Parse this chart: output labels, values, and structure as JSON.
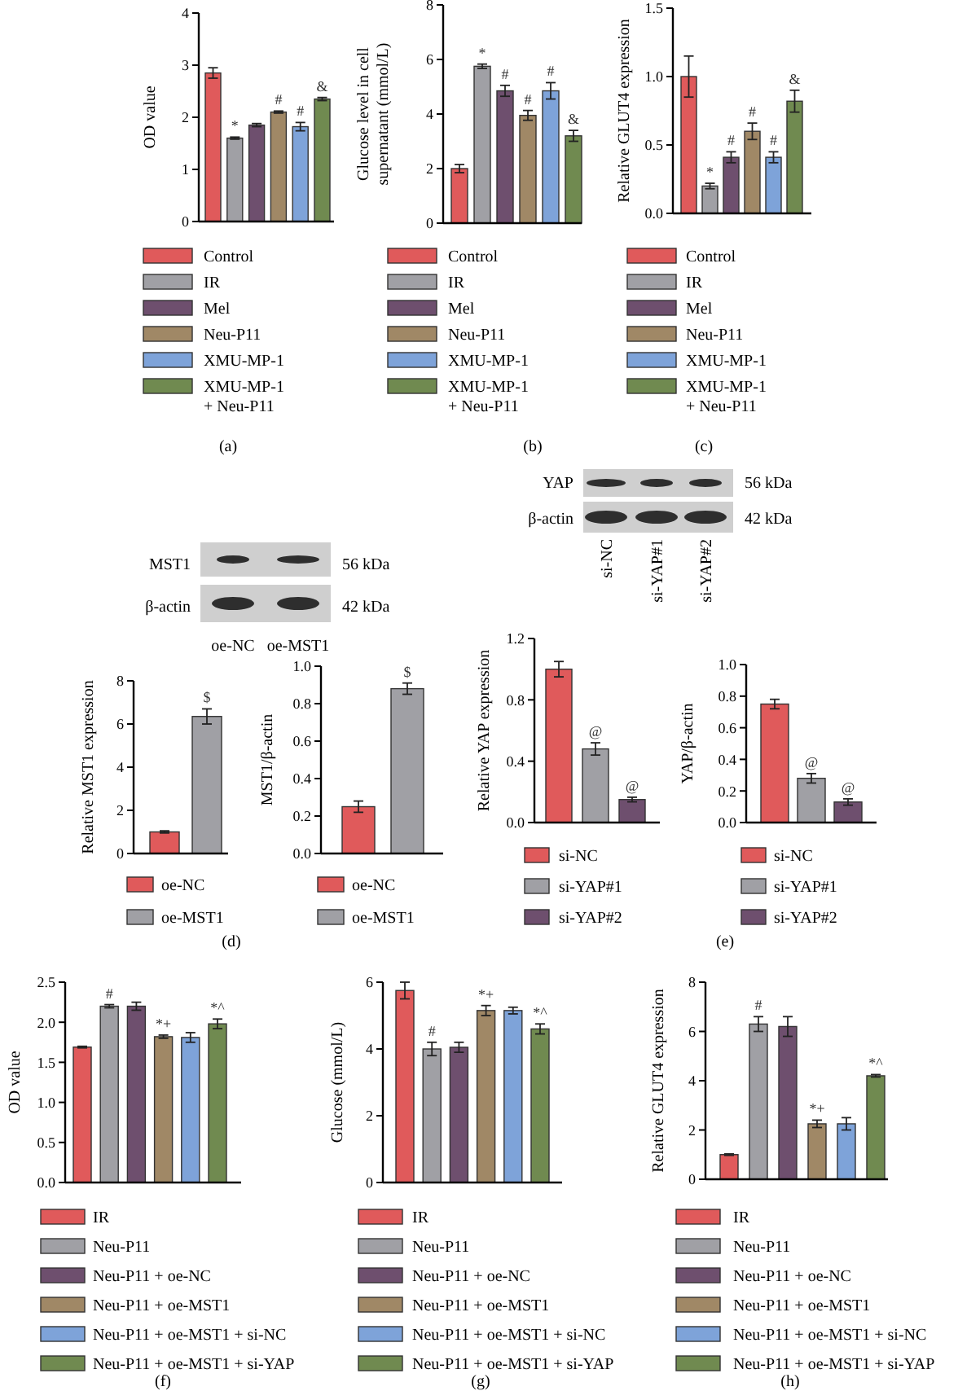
{
  "chart_data": [
    {
      "type": "bar",
      "ylabel": "OD value",
      "categories": [
        null
      ],
      "series": [
        {
          "name": "Control",
          "color": "#e05a5b",
          "values": [
            2.85
          ],
          "errors": [
            0.1
          ]
        },
        {
          "name": "IR",
          "color": "#a0a0a5",
          "values": [
            1.6
          ],
          "errors": [
            0.02
          ],
          "value_labels": [
            "*"
          ]
        },
        {
          "name": "Mel",
          "color": "#6e4f6e",
          "values": [
            1.85
          ],
          "errors": [
            0.03
          ]
        },
        {
          "name": "Neu-P11",
          "color": "#a08866",
          "values": [
            2.1
          ],
          "errors": [
            0.02
          ],
          "value_labels": [
            "#"
          ]
        },
        {
          "name": "XMU-MP-1",
          "color": "#7ea3d9",
          "values": [
            1.82
          ],
          "errors": [
            0.08
          ],
          "value_labels": [
            "#"
          ]
        },
        {
          "name": "XMU-MP-1\n+ Neu-P11",
          "color": "#708a50",
          "values": [
            2.35
          ],
          "errors": [
            0.03
          ],
          "value_labels": [
            "&"
          ]
        }
      ],
      "ylim": [
        0,
        4
      ],
      "yticks": [
        0,
        1,
        2,
        3,
        4
      ],
      "tick_labels": "y",
      "legend": "bottom",
      "annotations": [
        "(a)"
      ]
    },
    {
      "type": "bar",
      "ylabel": "Glucose level in cell\nsupernatant (mmol/L)",
      "categories": [
        null
      ],
      "series": [
        {
          "name": "Control",
          "color": "#e05a5b",
          "values": [
            2.0
          ],
          "errors": [
            0.15
          ]
        },
        {
          "name": "IR",
          "color": "#a0a0a5",
          "values": [
            5.75
          ],
          "errors": [
            0.08
          ],
          "value_labels": [
            "*"
          ]
        },
        {
          "name": "Mel",
          "color": "#6e4f6e",
          "values": [
            4.85
          ],
          "errors": [
            0.2
          ],
          "value_labels": [
            "#"
          ]
        },
        {
          "name": "Neu-P11",
          "color": "#a08866",
          "values": [
            3.95
          ],
          "errors": [
            0.18
          ],
          "value_labels": [
            "#"
          ]
        },
        {
          "name": "XMU-MP-1",
          "color": "#7ea3d9",
          "values": [
            4.85
          ],
          "errors": [
            0.3
          ],
          "value_labels": [
            "#"
          ]
        },
        {
          "name": "XMU-MP-1\n+ Neu-P11",
          "color": "#708a50",
          "values": [
            3.2
          ],
          "errors": [
            0.2
          ],
          "value_labels": [
            "&"
          ]
        }
      ],
      "ylim": [
        0,
        8
      ],
      "yticks": [
        0,
        2,
        4,
        6,
        8
      ],
      "tick_labels": "y",
      "legend": "bottom",
      "annotations": [
        "(b)"
      ]
    },
    {
      "type": "bar",
      "ylabel": "Relative GLUT4 expression",
      "categories": [
        null
      ],
      "series": [
        {
          "name": "Control",
          "color": "#e05a5b",
          "values": [
            1.0
          ],
          "errors": [
            0.15
          ]
        },
        {
          "name": "IR",
          "color": "#a0a0a5",
          "values": [
            0.2
          ],
          "errors": [
            0.02
          ],
          "value_labels": [
            "*"
          ]
        },
        {
          "name": "Mel",
          "color": "#6e4f6e",
          "values": [
            0.41
          ],
          "errors": [
            0.04
          ],
          "value_labels": [
            "#"
          ]
        },
        {
          "name": "Neu-P11",
          "color": "#a08866",
          "values": [
            0.6
          ],
          "errors": [
            0.06
          ],
          "value_labels": [
            "#"
          ]
        },
        {
          "name": "XMU-MP-1",
          "color": "#7ea3d9",
          "values": [
            0.41
          ],
          "errors": [
            0.04
          ],
          "value_labels": [
            "#"
          ]
        },
        {
          "name": "XMU-MP-1\n+ Neu-P11",
          "color": "#708a50",
          "values": [
            0.82
          ],
          "errors": [
            0.08
          ],
          "value_labels": [
            "&"
          ]
        }
      ],
      "ylim": [
        0,
        1.5
      ],
      "yticks": [
        {
          "value": 0,
          "label": "0.0"
        },
        {
          "value": 0.5,
          "label": "0.5"
        },
        {
          "value": 1,
          "label": "1.0"
        },
        {
          "value": 1.5,
          "label": "1.5"
        }
      ],
      "tick_labels": "y",
      "legend": "bottom",
      "annotations": [
        "(c)"
      ]
    },
    {
      "type": "other",
      "annotations": [
        "MST1",
        "56 kDa",
        "β-actin",
        "42 kDa",
        "oe-NC",
        "oe-MST1"
      ]
    },
    {
      "type": "bar",
      "ylabel": "Relative MST1 expression",
      "categories": [
        null
      ],
      "series": [
        {
          "name": "oe-NC",
          "color": "#e05a5b",
          "values": [
            1.0
          ],
          "errors": [
            0.05
          ]
        },
        {
          "name": "oe-MST1",
          "color": "#a0a0a5",
          "values": [
            6.35
          ],
          "errors": [
            0.35
          ],
          "value_labels": [
            "$"
          ]
        }
      ],
      "ylim": [
        0,
        8
      ],
      "yticks": [
        0,
        2,
        4,
        6,
        8
      ],
      "tick_labels": "y",
      "legend": "bottom"
    },
    {
      "type": "bar",
      "ylabel": "MST1/β-actin",
      "categories": [
        null
      ],
      "series": [
        {
          "name": "oe-NC",
          "color": "#e05a5b",
          "values": [
            0.25
          ],
          "errors": [
            0.03
          ]
        },
        {
          "name": "oe-MST1",
          "color": "#a0a0a5",
          "values": [
            0.88
          ],
          "errors": [
            0.03
          ],
          "value_labels": [
            "$"
          ]
        }
      ],
      "ylim": [
        0,
        1
      ],
      "yticks": [
        {
          "value": 0,
          "label": "0.0"
        },
        {
          "value": 0.2,
          "label": "0.2"
        },
        {
          "value": 0.4,
          "label": "0.4"
        },
        {
          "value": 0.6,
          "label": "0.6"
        },
        {
          "value": 0.8,
          "label": "0.8"
        },
        {
          "value": 1,
          "label": "1.0"
        }
      ],
      "tick_labels": "y",
      "legend": "bottom",
      "annotations": [
        "(d)"
      ]
    },
    {
      "type": "other",
      "annotations": [
        "YAP",
        "56 kDa",
        "β-actin",
        "42 kDa",
        "si-NC",
        "si-YAP#1",
        "si-YAP#2"
      ]
    },
    {
      "type": "bar",
      "ylabel": "Relative YAP expression",
      "categories": [
        null
      ],
      "series": [
        {
          "name": "si-NC",
          "color": "#e05a5b",
          "values": [
            1.0
          ],
          "errors": [
            0.05
          ]
        },
        {
          "name": "si-YAP#1",
          "color": "#a0a0a5",
          "values": [
            0.48
          ],
          "errors": [
            0.04
          ],
          "value_labels": [
            "@"
          ]
        },
        {
          "name": "si-YAP#2",
          "color": "#6e4f6e",
          "values": [
            0.15
          ],
          "errors": [
            0.015
          ],
          "value_labels": [
            "@"
          ]
        }
      ],
      "ylim": [
        0,
        1.2
      ],
      "yticks": [
        {
          "value": 0,
          "label": "0.0"
        },
        {
          "value": 0.4,
          "label": "0.4"
        },
        {
          "value": 0.8,
          "label": "0.8"
        },
        {
          "value": 1.2,
          "label": "1.2"
        }
      ],
      "tick_labels": "y",
      "legend": "bottom"
    },
    {
      "type": "bar",
      "ylabel": "YAP/β-actin",
      "categories": [
        null
      ],
      "series": [
        {
          "name": "si-NC",
          "color": "#e05a5b",
          "values": [
            0.75
          ],
          "errors": [
            0.03
          ]
        },
        {
          "name": "si-YAP#1",
          "color": "#a0a0a5",
          "values": [
            0.28
          ],
          "errors": [
            0.03
          ],
          "value_labels": [
            "@"
          ]
        },
        {
          "name": "si-YAP#2",
          "color": "#6e4f6e",
          "values": [
            0.13
          ],
          "errors": [
            0.02
          ],
          "value_labels": [
            "@"
          ]
        }
      ],
      "ylim": [
        0,
        1
      ],
      "yticks": [
        {
          "value": 0,
          "label": "0.0"
        },
        {
          "value": 0.2,
          "label": "0.2"
        },
        {
          "value": 0.4,
          "label": "0.4"
        },
        {
          "value": 0.6,
          "label": "0.6"
        },
        {
          "value": 0.8,
          "label": "0.8"
        },
        {
          "value": 1,
          "label": "1.0"
        }
      ],
      "tick_labels": "y",
      "legend": "bottom",
      "annotations": [
        "(e)"
      ]
    },
    {
      "type": "bar",
      "ylabel": "OD value",
      "categories": [
        null
      ],
      "series": [
        {
          "name": "IR",
          "color": "#e05a5b",
          "values": [
            1.69
          ],
          "errors": [
            0.01
          ]
        },
        {
          "name": "Neu-P11",
          "color": "#a0a0a5",
          "values": [
            2.2
          ],
          "errors": [
            0.02
          ],
          "value_labels": [
            "#"
          ]
        },
        {
          "name": "Neu-P11 + oe-NC",
          "color": "#6e4f6e",
          "values": [
            2.2
          ],
          "errors": [
            0.05
          ]
        },
        {
          "name": "Neu-P11 + oe-MST1",
          "color": "#a08866",
          "values": [
            1.82
          ],
          "errors": [
            0.02
          ],
          "value_labels": [
            "*+"
          ]
        },
        {
          "name": "Neu-P11 + oe-MST1 + si-NC",
          "color": "#7ea3d9",
          "values": [
            1.81
          ],
          "errors": [
            0.06
          ]
        },
        {
          "name": "Neu-P11 + oe-MST1 + si-YAP",
          "color": "#708a50",
          "values": [
            1.98
          ],
          "errors": [
            0.06
          ],
          "value_labels": [
            "*^"
          ]
        }
      ],
      "ylim": [
        0,
        2.5
      ],
      "yticks": [
        {
          "value": 0,
          "label": "0.0"
        },
        {
          "value": 0.5,
          "label": "0.5"
        },
        {
          "value": 1,
          "label": "1.0"
        },
        {
          "value": 1.5,
          "label": "1.5"
        },
        {
          "value": 2,
          "label": "2.0"
        },
        {
          "value": 2.5,
          "label": "2.5"
        }
      ],
      "tick_labels": "y",
      "legend": "bottom",
      "annotations": [
        "(f)"
      ]
    },
    {
      "type": "bar",
      "ylabel": "Glucose (mmol/L)",
      "categories": [
        null
      ],
      "series": [
        {
          "name": "IR",
          "color": "#e05a5b",
          "values": [
            5.75
          ],
          "errors": [
            0.25
          ]
        },
        {
          "name": "Neu-P11",
          "color": "#a0a0a5",
          "values": [
            4.0
          ],
          "errors": [
            0.2
          ],
          "value_labels": [
            "#"
          ]
        },
        {
          "name": "Neu-P11 + oe-NC",
          "color": "#6e4f6e",
          "values": [
            4.05
          ],
          "errors": [
            0.15
          ]
        },
        {
          "name": "Neu-P11 + oe-MST1",
          "color": "#a08866",
          "values": [
            5.15
          ],
          "errors": [
            0.15
          ],
          "value_labels": [
            "*+"
          ]
        },
        {
          "name": "Neu-P11 + oe-MST1 + si-NC",
          "color": "#7ea3d9",
          "values": [
            5.15
          ],
          "errors": [
            0.1
          ]
        },
        {
          "name": "Neu-P11 + oe-MST1 + si-YAP",
          "color": "#708a50",
          "values": [
            4.6
          ],
          "errors": [
            0.15
          ],
          "value_labels": [
            "*^"
          ]
        }
      ],
      "ylim": [
        0,
        6
      ],
      "yticks": [
        0,
        2,
        4,
        6
      ],
      "tick_labels": "y",
      "legend": "bottom",
      "annotations": [
        "(g)"
      ]
    },
    {
      "type": "bar",
      "ylabel": "Relative GLUT4 expression",
      "categories": [
        null
      ],
      "series": [
        {
          "name": "IR",
          "color": "#e05a5b",
          "values": [
            1.0
          ],
          "errors": [
            0.03
          ]
        },
        {
          "name": "Neu-P11",
          "color": "#a0a0a5",
          "values": [
            6.3
          ],
          "errors": [
            0.3
          ],
          "value_labels": [
            "#"
          ]
        },
        {
          "name": "Neu-P11 + oe-NC",
          "color": "#6e4f6e",
          "values": [
            6.2
          ],
          "errors": [
            0.4
          ]
        },
        {
          "name": "Neu-P11 + oe-MST1",
          "color": "#a08866",
          "values": [
            2.25
          ],
          "errors": [
            0.15
          ],
          "value_labels": [
            "*+"
          ]
        },
        {
          "name": "Neu-P11 + oe-MST1 + si-NC",
          "color": "#7ea3d9",
          "values": [
            2.25
          ],
          "errors": [
            0.25
          ]
        },
        {
          "name": "Neu-P11 + oe-MST1 + si-YAP",
          "color": "#708a50",
          "values": [
            4.2
          ],
          "errors": [
            0.05
          ],
          "value_labels": [
            "*^"
          ]
        }
      ],
      "ylim": [
        0,
        8
      ],
      "yticks": [
        0,
        2,
        4,
        6,
        8
      ],
      "tick_labels": "y",
      "legend": "bottom",
      "annotations": [
        "(h)"
      ]
    }
  ]
}
